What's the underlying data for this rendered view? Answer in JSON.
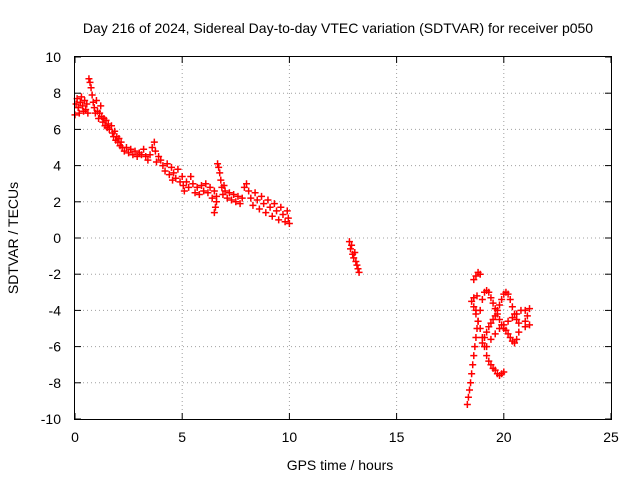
{
  "chart_data": {
    "type": "scatter",
    "title": "Day 216 of 2024, Sidereal Day-to-day VTEC variation (SDTVAR) for receiver p050",
    "xlabel": "GPS time / hours",
    "ylabel": "SDTVAR / TECUs",
    "xlim": [
      0,
      25
    ],
    "ylim": [
      -10,
      10
    ],
    "xticks": [
      0,
      5,
      10,
      15,
      20,
      25
    ],
    "yticks": [
      -10,
      -8,
      -6,
      -4,
      -2,
      0,
      2,
      4,
      6,
      8,
      10
    ],
    "grid": true,
    "marker": "+",
    "color": "#ff0000",
    "series": [
      {
        "name": "",
        "points": [
          [
            0.0,
            6.8
          ],
          [
            0.05,
            7.4
          ],
          [
            0.1,
            7.7
          ],
          [
            0.15,
            7.2
          ],
          [
            0.2,
            6.9
          ],
          [
            0.25,
            7.5
          ],
          [
            0.3,
            7.8
          ],
          [
            0.35,
            7.3
          ],
          [
            0.4,
            7.0
          ],
          [
            0.45,
            7.6
          ],
          [
            0.5,
            7.1
          ],
          [
            0.55,
            7.4
          ],
          [
            0.6,
            6.9
          ],
          [
            0.65,
            8.8
          ],
          [
            0.7,
            8.6
          ],
          [
            0.75,
            8.3
          ],
          [
            0.8,
            7.9
          ],
          [
            0.85,
            7.5
          ],
          [
            0.9,
            7.2
          ],
          [
            0.95,
            6.9
          ],
          [
            1.0,
            7.6
          ],
          [
            1.05,
            7.0
          ],
          [
            1.1,
            6.6
          ],
          [
            1.15,
            6.9
          ],
          [
            1.2,
            7.3
          ],
          [
            1.25,
            6.7
          ],
          [
            1.3,
            6.4
          ],
          [
            1.35,
            6.6
          ],
          [
            1.4,
            6.2
          ],
          [
            1.45,
            6.5
          ],
          [
            1.5,
            6.1
          ],
          [
            1.55,
            6.3
          ],
          [
            1.6,
            6.0
          ],
          [
            1.7,
            6.2
          ],
          [
            1.75,
            5.8
          ],
          [
            1.8,
            5.6
          ],
          [
            1.85,
            5.9
          ],
          [
            1.9,
            5.4
          ],
          [
            1.95,
            5.6
          ],
          [
            2.0,
            5.3
          ],
          [
            2.05,
            5.5
          ],
          [
            2.1,
            5.1
          ],
          [
            2.15,
            5.3
          ],
          [
            2.2,
            5.0
          ],
          [
            2.3,
            4.8
          ],
          [
            2.4,
            5.0
          ],
          [
            2.5,
            4.7
          ],
          [
            2.6,
            4.9
          ],
          [
            2.7,
            4.6
          ],
          [
            2.8,
            4.8
          ],
          [
            2.9,
            4.5
          ],
          [
            3.0,
            4.7
          ],
          [
            3.1,
            4.6
          ],
          [
            3.2,
            4.9
          ],
          [
            3.3,
            4.5
          ],
          [
            3.4,
            4.3
          ],
          [
            3.5,
            4.6
          ],
          [
            3.6,
            5.0
          ],
          [
            3.7,
            5.3
          ],
          [
            3.75,
            4.8
          ],
          [
            3.8,
            4.2
          ],
          [
            3.9,
            4.5
          ],
          [
            4.0,
            4.3
          ],
          [
            4.1,
            4.0
          ],
          [
            4.2,
            3.7
          ],
          [
            4.3,
            4.1
          ],
          [
            4.4,
            3.5
          ],
          [
            4.5,
            3.9
          ],
          [
            4.55,
            3.2
          ],
          [
            4.6,
            3.6
          ],
          [
            4.7,
            3.3
          ],
          [
            4.8,
            3.8
          ],
          [
            4.9,
            3.1
          ],
          [
            5.0,
            3.4
          ],
          [
            5.05,
            2.9
          ],
          [
            5.1,
            2.6
          ],
          [
            5.2,
            3.1
          ],
          [
            5.3,
            2.8
          ],
          [
            5.4,
            3.4
          ],
          [
            5.5,
            3.0
          ],
          [
            5.6,
            2.5
          ],
          [
            5.7,
            2.8
          ],
          [
            5.8,
            2.4
          ],
          [
            5.9,
            2.9
          ],
          [
            6.0,
            2.6
          ],
          [
            6.1,
            3.0
          ],
          [
            6.2,
            2.5
          ],
          [
            6.3,
            2.8
          ],
          [
            6.4,
            2.2
          ],
          [
            6.5,
            2.6
          ],
          [
            6.6,
            2.3
          ],
          [
            6.65,
            4.1
          ],
          [
            6.7,
            3.9
          ],
          [
            6.75,
            3.6
          ],
          [
            6.8,
            3.2
          ],
          [
            6.85,
            2.8
          ],
          [
            6.9,
            2.4
          ],
          [
            6.95,
            2.9
          ],
          [
            7.0,
            2.6
          ],
          [
            7.1,
            2.2
          ],
          [
            7.2,
            2.5
          ],
          [
            7.3,
            2.1
          ],
          [
            7.4,
            2.4
          ],
          [
            7.5,
            2.0
          ],
          [
            7.6,
            2.3
          ],
          [
            7.7,
            1.9
          ],
          [
            7.8,
            2.2
          ],
          [
            7.9,
            2.8
          ],
          [
            8.0,
            3.0
          ],
          [
            8.1,
            2.6
          ],
          [
            8.2,
            2.2
          ],
          [
            8.3,
            1.8
          ],
          [
            8.4,
            2.5
          ],
          [
            8.5,
            2.1
          ],
          [
            8.6,
            1.6
          ],
          [
            8.7,
            2.3
          ],
          [
            8.8,
            1.9
          ],
          [
            8.9,
            1.4
          ],
          [
            9.0,
            2.1
          ],
          [
            9.1,
            1.7
          ],
          [
            9.2,
            1.2
          ],
          [
            9.3,
            1.9
          ],
          [
            9.4,
            1.5
          ],
          [
            9.5,
            1.0
          ],
          [
            9.6,
            1.7
          ],
          [
            9.7,
            1.3
          ],
          [
            9.8,
            0.9
          ],
          [
            9.9,
            1.5
          ],
          [
            9.95,
            1.1
          ],
          [
            10.0,
            0.8
          ],
          [
            6.5,
            1.4
          ],
          [
            6.55,
            1.7
          ],
          [
            6.6,
            2.0
          ],
          [
            12.8,
            -0.2
          ],
          [
            12.85,
            -0.6
          ],
          [
            12.9,
            -0.4
          ],
          [
            12.95,
            -0.9
          ],
          [
            13.0,
            -1.1
          ],
          [
            13.05,
            -0.8
          ],
          [
            13.1,
            -1.3
          ],
          [
            13.15,
            -1.5
          ],
          [
            13.2,
            -1.7
          ],
          [
            13.25,
            -1.9
          ],
          [
            18.3,
            -9.2
          ],
          [
            18.35,
            -8.8
          ],
          [
            18.4,
            -8.4
          ],
          [
            18.45,
            -8.0
          ],
          [
            18.5,
            -7.5
          ],
          [
            18.55,
            -7.0
          ],
          [
            18.6,
            -6.5
          ],
          [
            18.65,
            -6.0
          ],
          [
            18.7,
            -5.5
          ],
          [
            18.75,
            -5.0
          ],
          [
            18.8,
            -4.6
          ],
          [
            18.7,
            -4.2
          ],
          [
            18.6,
            -3.8
          ],
          [
            18.5,
            -3.5
          ],
          [
            18.6,
            -3.3
          ],
          [
            18.7,
            -4.0
          ],
          [
            18.75,
            -3.2
          ],
          [
            18.7,
            -2.1
          ],
          [
            18.8,
            -1.9
          ],
          [
            18.9,
            -2.0
          ],
          [
            18.6,
            -2.3
          ],
          [
            18.8,
            -4.6
          ],
          [
            18.9,
            -5.0
          ],
          [
            19.0,
            -5.5
          ],
          [
            19.1,
            -6.0
          ],
          [
            19.2,
            -6.5
          ],
          [
            19.3,
            -6.8
          ],
          [
            19.4,
            -7.0
          ],
          [
            19.5,
            -7.2
          ],
          [
            19.6,
            -7.3
          ],
          [
            19.7,
            -7.5
          ],
          [
            19.8,
            -7.6
          ],
          [
            19.9,
            -7.5
          ],
          [
            20.0,
            -7.4
          ],
          [
            18.9,
            -4.0
          ],
          [
            19.0,
            -3.4
          ],
          [
            19.1,
            -3.0
          ],
          [
            19.2,
            -2.9
          ],
          [
            19.3,
            -3.0
          ],
          [
            19.4,
            -3.3
          ],
          [
            19.5,
            -3.6
          ],
          [
            19.6,
            -3.9
          ],
          [
            19.7,
            -4.2
          ],
          [
            19.8,
            -4.5
          ],
          [
            19.9,
            -4.8
          ],
          [
            20.0,
            -5.0
          ],
          [
            20.1,
            -5.1
          ],
          [
            20.2,
            -5.3
          ],
          [
            20.3,
            -5.5
          ],
          [
            20.4,
            -5.7
          ],
          [
            20.5,
            -5.8
          ],
          [
            20.6,
            -5.6
          ],
          [
            20.7,
            -5.2
          ],
          [
            19.0,
            -5.8
          ],
          [
            19.1,
            -5.5
          ],
          [
            19.2,
            -5.2
          ],
          [
            19.3,
            -4.9
          ],
          [
            19.4,
            -4.7
          ],
          [
            19.5,
            -4.5
          ],
          [
            19.6,
            -4.3
          ],
          [
            19.7,
            -4.0
          ],
          [
            19.8,
            -3.7
          ],
          [
            19.9,
            -3.4
          ],
          [
            20.0,
            -3.1
          ],
          [
            20.1,
            -3.0
          ],
          [
            20.2,
            -3.1
          ],
          [
            20.3,
            -3.4
          ],
          [
            20.4,
            -3.8
          ],
          [
            20.5,
            -4.2
          ],
          [
            20.6,
            -4.5
          ],
          [
            20.7,
            -4.7
          ],
          [
            19.2,
            -6.0
          ],
          [
            19.4,
            -5.6
          ],
          [
            19.6,
            -5.3
          ],
          [
            19.8,
            -5.0
          ],
          [
            20.0,
            -4.8
          ],
          [
            20.2,
            -4.6
          ],
          [
            20.4,
            -4.4
          ],
          [
            20.6,
            -4.2
          ],
          [
            20.8,
            -4.0
          ],
          [
            21.0,
            -4.0
          ],
          [
            21.2,
            -3.9
          ],
          [
            21.1,
            -4.3
          ],
          [
            21.0,
            -4.6
          ],
          [
            21.2,
            -4.8
          ],
          [
            21.0,
            -4.9
          ]
        ]
      }
    ]
  }
}
